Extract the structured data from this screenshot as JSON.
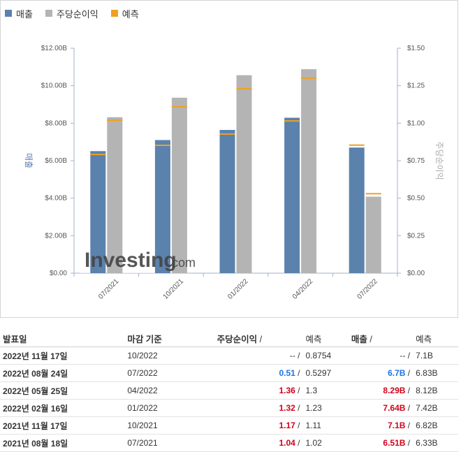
{
  "legend": {
    "revenue": "매출",
    "eps": "주당순이익",
    "forecast": "예측"
  },
  "colors": {
    "revenue": "#5b82ad",
    "eps": "#b4b4b4",
    "forecast": "#f0a020",
    "positive": "#d0021b",
    "negative": "#1a73e8"
  },
  "watermark": {
    "brand": "Investing",
    "suffix": ".com"
  },
  "chart_data": {
    "type": "bar",
    "categories": [
      "07/2021",
      "10/2021",
      "01/2022",
      "04/2022",
      "07/2022"
    ],
    "series": [
      {
        "name": "매출",
        "axis": "left",
        "values": [
          6.51,
          7.1,
          7.64,
          8.29,
          6.7
        ],
        "forecast": [
          6.33,
          6.82,
          7.42,
          8.12,
          6.83
        ]
      },
      {
        "name": "주당순이익",
        "axis": "right",
        "values": [
          1.04,
          1.17,
          1.32,
          1.36,
          0.51
        ],
        "forecast": [
          1.02,
          1.11,
          1.23,
          1.3,
          0.5297
        ]
      }
    ],
    "ylabel": "매출",
    "y2label": "주당순이익",
    "ylim": [
      0,
      12
    ],
    "y2lim": [
      0,
      1.5
    ],
    "yticks": [
      "$0.00",
      "$2.00B",
      "$4.00B",
      "$6.00B",
      "$8.00B",
      "$10.00B",
      "$12.00B"
    ],
    "y2ticks": [
      "$0.00",
      "$0.25",
      "$0.50",
      "$0.75",
      "$1.00",
      "$1.25",
      "$1.50"
    ],
    "grid": false,
    "legend_position": "top-left"
  },
  "table": {
    "headers": {
      "date": "발표일",
      "period": "마감 기준",
      "eps": "주당순이익",
      "eps_sep": "/",
      "eps_forecast": "예측",
      "revenue": "매출",
      "revenue_sep": "/",
      "revenue_forecast": "예측"
    },
    "rows": [
      {
        "date": "2022년 11월 17일",
        "period": "10/2022",
        "eps": "--",
        "eps_sep": "/",
        "eps_forecast": "0.8754",
        "revenue": "--",
        "revenue_sep": "/",
        "revenue_forecast": "7.1B",
        "eps_dir": "neutral",
        "rev_dir": "neutral"
      },
      {
        "date": "2022년 08월 24일",
        "period": "07/2022",
        "eps": "0.51",
        "eps_sep": "/",
        "eps_forecast": "0.5297",
        "revenue": "6.7B",
        "revenue_sep": "/",
        "revenue_forecast": "6.83B",
        "eps_dir": "down",
        "rev_dir": "down"
      },
      {
        "date": "2022년 05월 25일",
        "period": "04/2022",
        "eps": "1.36",
        "eps_sep": "/",
        "eps_forecast": "1.3",
        "revenue": "8.29B",
        "revenue_sep": "/",
        "revenue_forecast": "8.12B",
        "eps_dir": "up",
        "rev_dir": "up"
      },
      {
        "date": "2022년 02월 16일",
        "period": "01/2022",
        "eps": "1.32",
        "eps_sep": "/",
        "eps_forecast": "1.23",
        "revenue": "7.64B",
        "revenue_sep": "/",
        "revenue_forecast": "7.42B",
        "eps_dir": "up",
        "rev_dir": "up"
      },
      {
        "date": "2021년 11월 17일",
        "period": "10/2021",
        "eps": "1.17",
        "eps_sep": "/",
        "eps_forecast": "1.11",
        "revenue": "7.1B",
        "revenue_sep": "/",
        "revenue_forecast": "6.82B",
        "eps_dir": "up",
        "rev_dir": "up"
      },
      {
        "date": "2021년 08월 18일",
        "period": "07/2021",
        "eps": "1.04",
        "eps_sep": "/",
        "eps_forecast": "1.02",
        "revenue": "6.51B",
        "revenue_sep": "/",
        "revenue_forecast": "6.33B",
        "eps_dir": "up",
        "rev_dir": "up"
      }
    ]
  }
}
